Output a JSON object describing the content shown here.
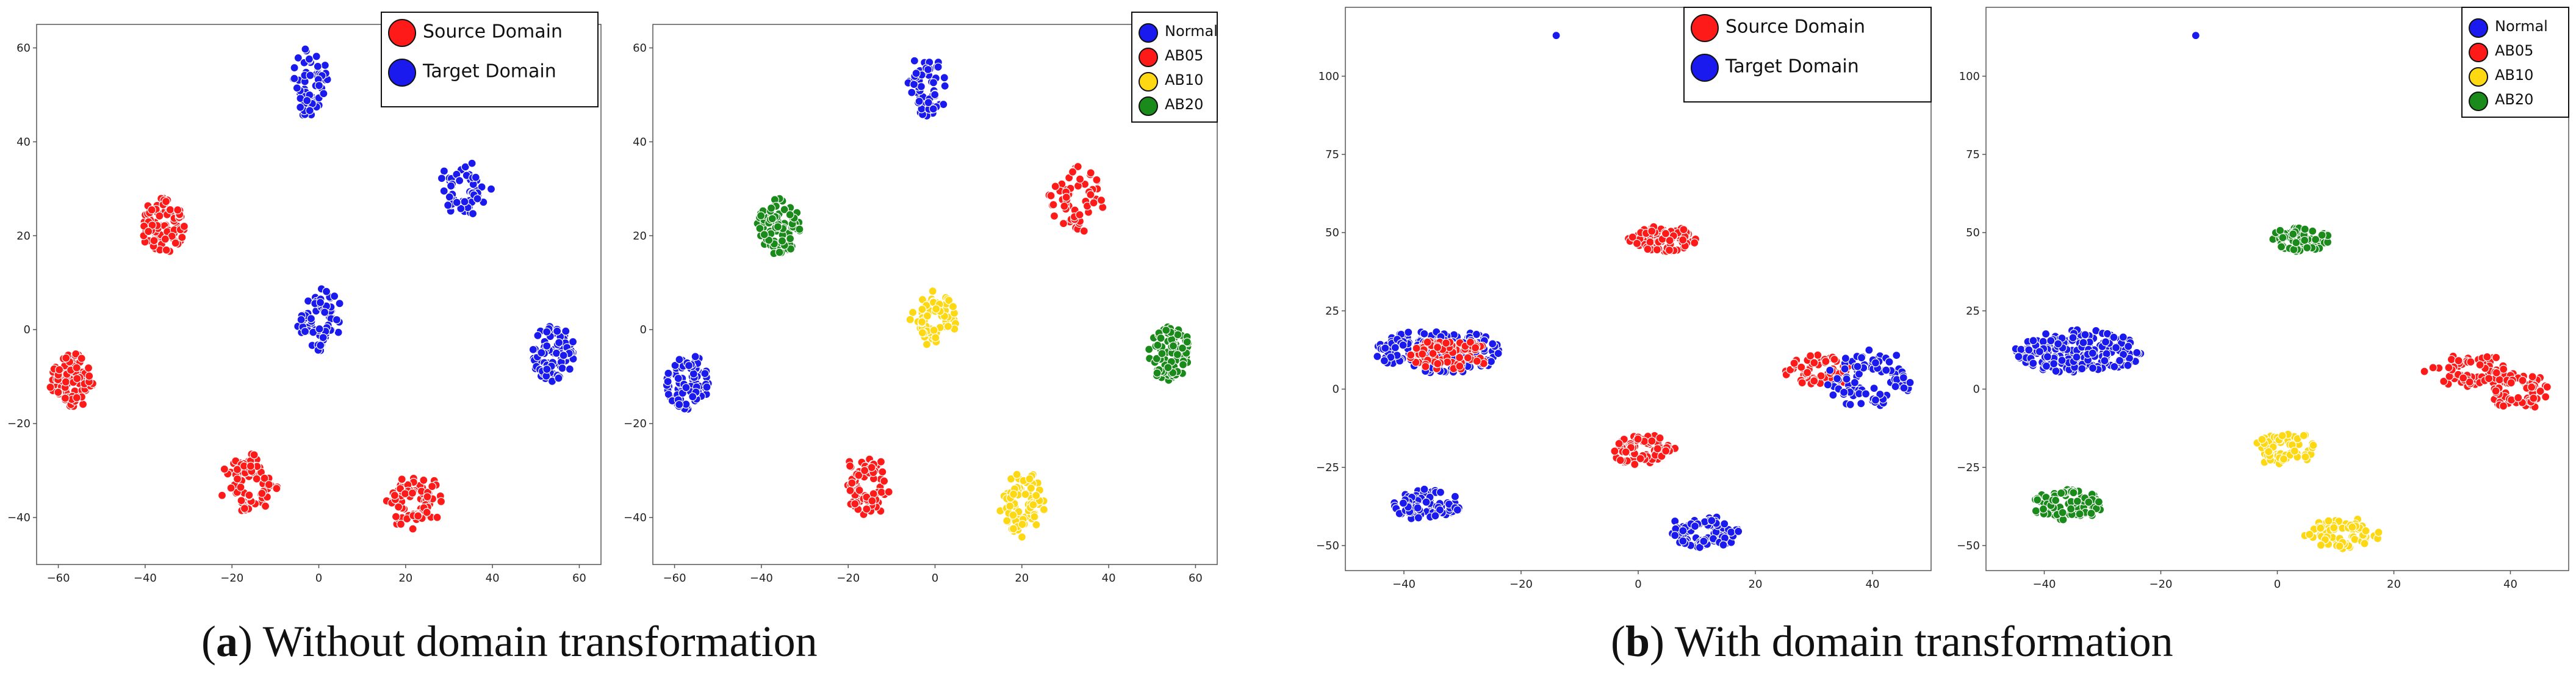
{
  "captions": {
    "a": {
      "open": "(",
      "letter": "a",
      "close": ")",
      "text": " Without domain transformation"
    },
    "b": {
      "open": "(",
      "letter": "b",
      "close": ")",
      "text": " With domain transformation"
    }
  },
  "colors": {
    "red": "#ff1a1a",
    "blue": "#1a1aee",
    "yellow": "#ffd814",
    "green": "#1a8a1a"
  },
  "chart_data": [
    {
      "id": "a-left",
      "type": "scatter",
      "xlim": [
        -65,
        65
      ],
      "ylim": [
        -50,
        65
      ],
      "xticks": [
        -60,
        -40,
        -20,
        0,
        20,
        40,
        60
      ],
      "yticks": [
        -40,
        -20,
        0,
        20,
        40,
        60
      ],
      "xtick_labels": [
        "−60",
        "−40",
        "−20",
        "0",
        "20",
        "40",
        "60"
      ],
      "ytick_labels": [
        "−40",
        "−20",
        "0",
        "20",
        "40",
        "60"
      ],
      "legend": [
        {
          "label": "Source Domain",
          "color": "#ff1a1a"
        },
        {
          "label": "Target Domain",
          "color": "#1a1aee"
        }
      ],
      "clusters": [
        {
          "x": -2,
          "y": 52,
          "sx": 4,
          "sy": 7,
          "n": 70,
          "color": "#1a1aee",
          "shape": "ring"
        },
        {
          "x": 33,
          "y": 30,
          "sx": 6,
          "sy": 6,
          "n": 60,
          "color": "#1a1aee",
          "shape": "ring"
        },
        {
          "x": -36,
          "y": 22,
          "sx": 5,
          "sy": 6,
          "n": 90,
          "color": "#ff1a1a",
          "shape": "blob"
        },
        {
          "x": 0,
          "y": 2,
          "sx": 5,
          "sy": 6,
          "n": 70,
          "color": "#1a1aee",
          "shape": "ring"
        },
        {
          "x": 54,
          "y": -5,
          "sx": 5,
          "sy": 6,
          "n": 90,
          "color": "#1a1aee",
          "shape": "blob"
        },
        {
          "x": -57,
          "y": -11,
          "sx": 5,
          "sy": 6,
          "n": 90,
          "color": "#ff1a1a",
          "shape": "blob"
        },
        {
          "x": -16,
          "y": -33,
          "sx": 6,
          "sy": 6,
          "n": 80,
          "color": "#ff1a1a",
          "shape": "ring"
        },
        {
          "x": 22,
          "y": -37,
          "sx": 6,
          "sy": 6,
          "n": 80,
          "color": "#ff1a1a",
          "shape": "ring"
        }
      ]
    },
    {
      "id": "a-right",
      "type": "scatter",
      "xlim": [
        -65,
        65
      ],
      "ylim": [
        -50,
        65
      ],
      "xticks": [
        -60,
        -40,
        -20,
        0,
        20,
        40,
        60
      ],
      "yticks": [
        -40,
        -20,
        0,
        20,
        40,
        60
      ],
      "xtick_labels": [
        "−60",
        "−40",
        "−20",
        "0",
        "20",
        "40",
        "60"
      ],
      "ytick_labels": [
        "−40",
        "−20",
        "0",
        "20",
        "40",
        "60"
      ],
      "legend": [
        {
          "label": "Normal",
          "color": "#1a1aee"
        },
        {
          "label": "AB05",
          "color": "#ff1a1a"
        },
        {
          "label": "AB10",
          "color": "#ffd814"
        },
        {
          "label": "AB20",
          "color": "#1a8a1a"
        }
      ],
      "clusters": [
        {
          "x": -2,
          "y": 52,
          "sx": 4,
          "sy": 7,
          "n": 70,
          "color": "#1a1aee",
          "shape": "ring"
        },
        {
          "x": 33,
          "y": 28,
          "sx": 6,
          "sy": 7,
          "n": 60,
          "color": "#ff1a1a",
          "shape": "ring"
        },
        {
          "x": -36,
          "y": 22,
          "sx": 5,
          "sy": 6,
          "n": 90,
          "color": "#1a8a1a",
          "shape": "blob"
        },
        {
          "x": 0,
          "y": 2,
          "sx": 5,
          "sy": 6,
          "n": 70,
          "color": "#ffd814",
          "shape": "ring"
        },
        {
          "x": 54,
          "y": -5,
          "sx": 5,
          "sy": 6,
          "n": 90,
          "color": "#1a8a1a",
          "shape": "blob"
        },
        {
          "x": -57,
          "y": -11,
          "sx": 5,
          "sy": 6,
          "n": 90,
          "color": "#1a1aee",
          "shape": "blob"
        },
        {
          "x": -16,
          "y": -33,
          "sx": 6,
          "sy": 6,
          "n": 80,
          "color": "#ff1a1a",
          "shape": "ring"
        },
        {
          "x": 20,
          "y": -37,
          "sx": 5,
          "sy": 7,
          "n": 80,
          "color": "#ffd814",
          "shape": "ring"
        }
      ]
    },
    {
      "id": "b-left",
      "type": "scatter",
      "xlim": [
        -50,
        50
      ],
      "ylim": [
        -58,
        122
      ],
      "xticks": [
        -40,
        -20,
        0,
        20,
        40
      ],
      "yticks": [
        -50,
        -25,
        0,
        25,
        50,
        75,
        100
      ],
      "xtick_labels": [
        "−40",
        "−20",
        "0",
        "20",
        "40"
      ],
      "ytick_labels": [
        "−50",
        "−25",
        "0",
        "25",
        "50",
        "75",
        "100"
      ],
      "legend": [
        {
          "label": "Source Domain",
          "color": "#ff1a1a"
        },
        {
          "label": "Target Domain",
          "color": "#1a1aee"
        }
      ],
      "clusters": [
        {
          "x": -14,
          "y": 113,
          "sx": 0,
          "sy": 0,
          "n": 1,
          "color": "#1a1aee",
          "shape": "blob"
        },
        {
          "x": 4,
          "y": 48,
          "sx": 6,
          "sy": 4,
          "n": 90,
          "color": "#ff1a1a",
          "shape": "blob"
        },
        {
          "x": -34,
          "y": 12,
          "sx": 11,
          "sy": 7,
          "n": 170,
          "color": "#1a1aee",
          "shape": "blob"
        },
        {
          "x": -32,
          "y": 11,
          "sx": 7,
          "sy": 5,
          "n": 90,
          "color": "#ff1a1a",
          "shape": "blob"
        },
        {
          "x": 31,
          "y": 6,
          "sx": 6,
          "sy": 5,
          "n": 70,
          "color": "#ff1a1a",
          "shape": "ring"
        },
        {
          "x": 40,
          "y": 3,
          "sx": 7,
          "sy": 9,
          "n": 90,
          "color": "#1a1aee",
          "shape": "ring"
        },
        {
          "x": 1,
          "y": -19,
          "sx": 5,
          "sy": 5,
          "n": 70,
          "color": "#ff1a1a",
          "shape": "ring"
        },
        {
          "x": -36,
          "y": -37,
          "sx": 6,
          "sy": 5,
          "n": 90,
          "color": "#1a1aee",
          "shape": "blob"
        },
        {
          "x": 11,
          "y": -46,
          "sx": 6,
          "sy": 5,
          "n": 90,
          "color": "#1a1aee",
          "shape": "ring"
        }
      ]
    },
    {
      "id": "b-right",
      "type": "scatter",
      "xlim": [
        -50,
        50
      ],
      "ylim": [
        -58,
        122
      ],
      "xticks": [
        -40,
        -20,
        0,
        20,
        40
      ],
      "yticks": [
        -50,
        -25,
        0,
        25,
        50,
        75,
        100
      ],
      "xtick_labels": [
        "−40",
        "−20",
        "0",
        "20",
        "40"
      ],
      "ytick_labels": [
        "−50",
        "−25",
        "0",
        "25",
        "50",
        "75",
        "100"
      ],
      "legend": [
        {
          "label": "Normal",
          "color": "#1a1aee"
        },
        {
          "label": "AB05",
          "color": "#ff1a1a"
        },
        {
          "label": "AB10",
          "color": "#ffd814"
        },
        {
          "label": "AB20",
          "color": "#1a8a1a"
        }
      ],
      "clusters": [
        {
          "x": -14,
          "y": 113,
          "sx": 0,
          "sy": 0,
          "n": 1,
          "color": "#1a1aee",
          "shape": "blob"
        },
        {
          "x": 4,
          "y": 48,
          "sx": 5,
          "sy": 4,
          "n": 90,
          "color": "#1a8a1a",
          "shape": "blob"
        },
        {
          "x": -34,
          "y": 12,
          "sx": 11,
          "sy": 7,
          "n": 220,
          "color": "#1a1aee",
          "shape": "blob"
        },
        {
          "x": 33,
          "y": 6,
          "sx": 7,
          "sy": 5,
          "n": 70,
          "color": "#ff1a1a",
          "shape": "ring"
        },
        {
          "x": 41,
          "y": 0,
          "sx": 6,
          "sy": 6,
          "n": 70,
          "color": "#ff1a1a",
          "shape": "ring"
        },
        {
          "x": 1,
          "y": -19,
          "sx": 5,
          "sy": 5,
          "n": 70,
          "color": "#ffd814",
          "shape": "ring"
        },
        {
          "x": -36,
          "y": -37,
          "sx": 6,
          "sy": 5,
          "n": 90,
          "color": "#1a8a1a",
          "shape": "blob"
        },
        {
          "x": 11,
          "y": -46,
          "sx": 6,
          "sy": 5,
          "n": 90,
          "color": "#ffd814",
          "shape": "ring"
        }
      ]
    }
  ]
}
